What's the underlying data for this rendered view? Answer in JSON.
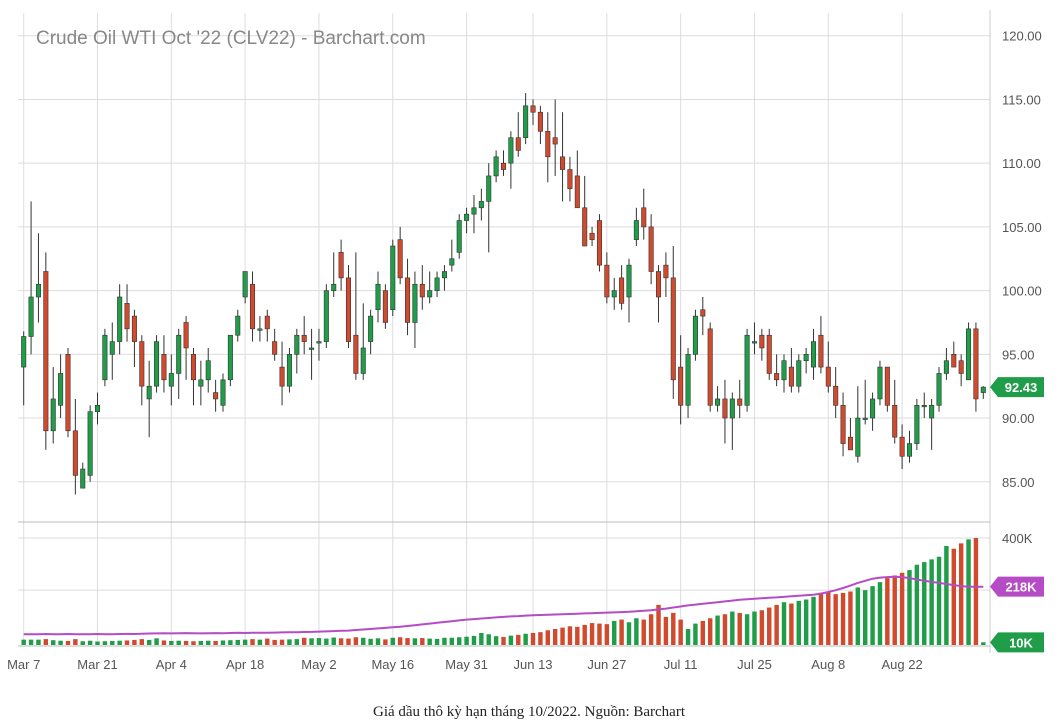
{
  "chart_data": {
    "type": "candlestick",
    "title": "Crude Oil WTI Oct '22 (CLV22) - Barchart.com",
    "price_axis": {
      "range": [
        82,
        121
      ],
      "ticks": [
        "120.00",
        "115.00",
        "110.00",
        "105.00",
        "100.00",
        "95.00",
        "90.00",
        "85.00"
      ],
      "tick_values": [
        120,
        115,
        110,
        105,
        100,
        95,
        90,
        85
      ]
    },
    "volume_axis": {
      "range": [
        0,
        400000
      ],
      "ticks": [
        "400K",
        "10K"
      ],
      "tick_values": [
        400000,
        10000
      ]
    },
    "x_axis": {
      "labels": [
        "Mar 7",
        "Mar 21",
        "Apr 4",
        "Apr 18",
        "May 2",
        "May 16",
        "May 31",
        "Jun 13",
        "Jun 27",
        "Jul 11",
        "Jul 25",
        "Aug 8",
        "Aug 22"
      ],
      "label_indices": [
        0,
        10,
        20,
        30,
        40,
        50,
        60,
        69,
        79,
        89,
        99,
        109,
        119
      ]
    },
    "grid": true,
    "last_price": {
      "label": "92.43",
      "value": 92.43,
      "color": "#1f9d48"
    },
    "avg_volume_badge": {
      "label": "218K",
      "value": 218000,
      "color": "#b54cc6"
    },
    "min_volume_badge": {
      "label": "10K",
      "value": 10000,
      "color": "#1f9d48"
    },
    "colors": {
      "up": "#1f9d48",
      "down": "#d24a2e",
      "volume_ma": "#b54cc6",
      "grid": "#dddddd"
    },
    "candles": [
      [
        94.0,
        96.8,
        91.0,
        96.4
      ],
      [
        96.4,
        107.0,
        95.0,
        99.5
      ],
      [
        99.5,
        104.5,
        97.5,
        100.5
      ],
      [
        101.5,
        103.0,
        87.5,
        89.0
      ],
      [
        89.0,
        94.0,
        88.0,
        91.5
      ],
      [
        91.0,
        95.0,
        90.0,
        93.5
      ],
      [
        95.0,
        95.5,
        88.5,
        89.0
      ],
      [
        89.0,
        91.5,
        84.0,
        85.5
      ],
      [
        84.5,
        86.5,
        84.5,
        86.0
      ],
      [
        85.5,
        91.0,
        85.0,
        90.5
      ],
      [
        90.5,
        92.0,
        89.5,
        91.0
      ],
      [
        93.0,
        97.0,
        92.5,
        96.5
      ],
      [
        95.0,
        97.5,
        93.0,
        96.0
      ],
      [
        96.0,
        100.5,
        95.0,
        99.5
      ],
      [
        99.0,
        100.5,
        96.0,
        97.0
      ],
      [
        98.0,
        98.5,
        94.0,
        96.0
      ],
      [
        96.0,
        96.5,
        91.0,
        92.5
      ],
      [
        91.5,
        94.5,
        88.5,
        92.5
      ],
      [
        92.5,
        96.5,
        92.0,
        96.0
      ],
      [
        95.0,
        96.5,
        92.0,
        93.0
      ],
      [
        92.5,
        95.0,
        91.0,
        93.5
      ],
      [
        93.5,
        97.0,
        91.5,
        96.5
      ],
      [
        97.5,
        98.0,
        93.0,
        95.5
      ],
      [
        95.0,
        95.5,
        91.0,
        93.0
      ],
      [
        92.5,
        94.5,
        91.0,
        93.0
      ],
      [
        93.0,
        95.5,
        92.0,
        94.5
      ],
      [
        92.0,
        93.0,
        90.5,
        91.5
      ],
      [
        91.0,
        93.5,
        90.5,
        93.0
      ],
      [
        93.0,
        96.5,
        92.5,
        96.5
      ],
      [
        96.5,
        98.5,
        96.0,
        98.0
      ],
      [
        99.5,
        101.5,
        99.0,
        101.5
      ],
      [
        100.5,
        101.5,
        96.0,
        97.0
      ],
      [
        97.0,
        98.0,
        96.0,
        97.0
      ],
      [
        98.0,
        98.5,
        96.0,
        97.0
      ],
      [
        96.0,
        97.0,
        94.5,
        95.0
      ],
      [
        94.0,
        96.0,
        91.0,
        92.5
      ],
      [
        92.5,
        95.5,
        92.0,
        95.0
      ],
      [
        95.0,
        97.0,
        93.5,
        96.5
      ],
      [
        96.5,
        98.0,
        95.0,
        96.0
      ],
      [
        95.5,
        97.0,
        93.0,
        95.5
      ],
      [
        96.0,
        97.0,
        94.5,
        96.0
      ],
      [
        96.0,
        100.5,
        95.5,
        100.0
      ],
      [
        100.0,
        103.0,
        99.5,
        100.5
      ],
      [
        103.0,
        104.0,
        100.0,
        101.0
      ],
      [
        101.0,
        102.0,
        95.5,
        96.0
      ],
      [
        96.5,
        103.0,
        93.0,
        93.5
      ],
      [
        93.5,
        99.0,
        93.0,
        95.5
      ],
      [
        96.0,
        98.5,
        95.0,
        98.0
      ],
      [
        98.5,
        101.5,
        97.5,
        100.5
      ],
      [
        100.0,
        100.5,
        97.0,
        97.5
      ],
      [
        98.5,
        104.0,
        98.0,
        103.5
      ],
      [
        104.0,
        105.0,
        100.5,
        101.0
      ],
      [
        101.0,
        102.5,
        96.5,
        97.5
      ],
      [
        97.5,
        101.5,
        95.5,
        100.5
      ],
      [
        100.5,
        102.0,
        98.5,
        99.5
      ],
      [
        99.5,
        101.5,
        99.0,
        100.0
      ],
      [
        100.0,
        101.5,
        99.5,
        101.0
      ],
      [
        101.0,
        102.0,
        100.0,
        101.5
      ],
      [
        102.0,
        104.0,
        101.5,
        102.5
      ],
      [
        103.0,
        106.0,
        102.5,
        105.5
      ],
      [
        105.5,
        106.5,
        104.5,
        106.0
      ],
      [
        106.0,
        107.5,
        104.5,
        106.5
      ],
      [
        106.5,
        108.0,
        105.5,
        107.0
      ],
      [
        107.0,
        110.0,
        103.0,
        109.0
      ],
      [
        109.0,
        111.0,
        108.5,
        110.5
      ],
      [
        110.0,
        111.0,
        109.0,
        109.5
      ],
      [
        110.0,
        112.5,
        108.0,
        112.0
      ],
      [
        112.0,
        114.0,
        110.5,
        111.0
      ],
      [
        112.0,
        115.5,
        111.5,
        114.5
      ],
      [
        114.5,
        115.0,
        113.0,
        114.0
      ],
      [
        114.0,
        114.5,
        111.5,
        112.5
      ],
      [
        112.5,
        114.0,
        108.5,
        110.5
      ],
      [
        112.0,
        115.0,
        109.0,
        111.5
      ],
      [
        110.5,
        114.0,
        107.0,
        109.5
      ],
      [
        109.5,
        110.5,
        107.0,
        108.0
      ],
      [
        109.0,
        111.0,
        106.5,
        106.5
      ],
      [
        106.5,
        109.0,
        103.5,
        103.5
      ],
      [
        104.5,
        105.0,
        103.5,
        104.0
      ],
      [
        105.5,
        106.0,
        101.5,
        102.0
      ],
      [
        102.0,
        103.0,
        99.0,
        99.5
      ],
      [
        99.5,
        101.0,
        98.5,
        100.0
      ],
      [
        101.0,
        102.0,
        98.5,
        99.0
      ],
      [
        99.5,
        102.5,
        97.5,
        102.0
      ],
      [
        104.0,
        106.5,
        103.5,
        105.5
      ],
      [
        106.5,
        108.0,
        104.0,
        105.0
      ],
      [
        105.0,
        106.0,
        100.5,
        101.5
      ],
      [
        101.5,
        102.0,
        97.5,
        99.5
      ],
      [
        102.0,
        103.0,
        99.5,
        101.0
      ],
      [
        101.0,
        103.5,
        91.5,
        93.0
      ],
      [
        94.0,
        96.5,
        89.5,
        91.0
      ],
      [
        91.0,
        95.5,
        90.0,
        95.0
      ],
      [
        95.0,
        98.5,
        94.5,
        98.0
      ],
      [
        98.5,
        99.5,
        96.5,
        98.0
      ],
      [
        97.0,
        97.5,
        90.5,
        91.0
      ],
      [
        91.0,
        92.5,
        90.5,
        91.5
      ],
      [
        91.5,
        93.0,
        88.0,
        90.0
      ],
      [
        90.0,
        92.0,
        87.5,
        91.5
      ],
      [
        91.5,
        93.0,
        90.0,
        91.0
      ],
      [
        91.0,
        97.0,
        90.5,
        96.5
      ],
      [
        96.0,
        97.5,
        95.0,
        96.0
      ],
      [
        96.5,
        97.0,
        94.5,
        95.5
      ],
      [
        96.5,
        97.0,
        93.0,
        93.5
      ],
      [
        93.5,
        95.0,
        92.5,
        93.0
      ],
      [
        93.0,
        95.0,
        92.0,
        94.5
      ],
      [
        94.0,
        95.5,
        92.0,
        92.5
      ],
      [
        92.5,
        95.0,
        92.0,
        94.5
      ],
      [
        94.5,
        95.5,
        93.5,
        95.0
      ],
      [
        94.0,
        97.0,
        93.0,
        96.0
      ],
      [
        96.5,
        98.0,
        93.5,
        94.0
      ],
      [
        94.0,
        96.0,
        92.0,
        92.5
      ],
      [
        92.5,
        94.0,
        90.0,
        91.0
      ],
      [
        91.0,
        92.0,
        87.0,
        88.0
      ],
      [
        88.5,
        90.0,
        87.5,
        87.5
      ],
      [
        87.0,
        92.5,
        86.5,
        90.0
      ],
      [
        90.0,
        93.0,
        89.5,
        90.0
      ],
      [
        90.0,
        92.0,
        89.0,
        91.5
      ],
      [
        91.5,
        94.5,
        91.0,
        94.0
      ],
      [
        94.0,
        94.0,
        90.5,
        91.0
      ],
      [
        91.0,
        93.0,
        88.0,
        88.5
      ],
      [
        88.5,
        89.5,
        86.0,
        87.0
      ],
      [
        87.0,
        89.0,
        86.5,
        88.0
      ],
      [
        88.0,
        91.5,
        87.5,
        91.0
      ],
      [
        91.0,
        92.0,
        90.0,
        91.0
      ],
      [
        90.0,
        91.5,
        87.5,
        91.0
      ],
      [
        91.0,
        94.0,
        90.5,
        93.5
      ],
      [
        93.5,
        95.5,
        93.0,
        94.5
      ],
      [
        95.0,
        96.0,
        94.0,
        94.0
      ],
      [
        94.5,
        95.0,
        92.5,
        93.5
      ],
      [
        93.0,
        97.5,
        93.0,
        97.0
      ],
      [
        97.0,
        97.5,
        90.5,
        91.5
      ],
      [
        92.0,
        92.5,
        91.5,
        92.43
      ]
    ],
    "volume": [
      20000,
      20000,
      20000,
      22000,
      18000,
      16000,
      15000,
      22000,
      14000,
      16000,
      13000,
      14000,
      15000,
      16000,
      17000,
      19000,
      22000,
      19000,
      25000,
      17000,
      15000,
      16000,
      15000,
      14000,
      15000,
      16000,
      15000,
      17000,
      18000,
      19000,
      20000,
      22000,
      20000,
      24000,
      19000,
      20000,
      21000,
      22000,
      27000,
      25000,
      26000,
      24000,
      28000,
      25000,
      24000,
      29000,
      27000,
      23000,
      25000,
      21000,
      27000,
      29000,
      26000,
      25000,
      26000,
      24000,
      23000,
      27000,
      27000,
      29000,
      31000,
      34000,
      45000,
      40000,
      33000,
      30000,
      35000,
      38000,
      42000,
      45000,
      48000,
      55000,
      60000,
      65000,
      70000,
      68000,
      75000,
      82000,
      80000,
      78000,
      90000,
      95000,
      85000,
      100000,
      95000,
      115000,
      150000,
      105000,
      120000,
      95000,
      60000,
      80000,
      90000,
      100000,
      110000,
      115000,
      125000,
      120000,
      115000,
      125000,
      130000,
      140000,
      150000,
      160000,
      155000,
      165000,
      170000,
      180000,
      195000,
      200000,
      190000,
      195000,
      200000,
      215000,
      205000,
      220000,
      235000,
      250000,
      260000,
      270000,
      280000,
      300000,
      310000,
      320000,
      330000,
      370000,
      360000,
      380000,
      395000,
      400000,
      10000
    ],
    "volume_ma": [
      40000,
      40500,
      40000,
      41000,
      40500,
      40000,
      41000,
      40500,
      40000,
      40500,
      41000,
      40000,
      40500,
      41000,
      41500,
      41000,
      42000,
      43000,
      43500,
      44000,
      43500,
      44000,
      44500,
      44000,
      43500,
      44000,
      44500,
      44000,
      45000,
      45500,
      45000,
      46000,
      45500,
      46000,
      46500,
      47000,
      47500,
      48000,
      48500,
      49000,
      50000,
      51000,
      52000,
      53000,
      54000,
      56000,
      58000,
      60000,
      62000,
      64000,
      66000,
      68000,
      71000,
      74000,
      77000,
      80000,
      83000,
      86000,
      89000,
      92000,
      95000,
      97000,
      99000,
      101000,
      103000,
      105000,
      107000,
      108000,
      110000,
      111000,
      112000,
      113000,
      114000,
      115000,
      116000,
      117000,
      118000,
      119000,
      120000,
      121000,
      122000,
      123000,
      124000,
      126000,
      128000,
      130000,
      133000,
      136000,
      140000,
      144000,
      148000,
      151000,
      154000,
      157000,
      160000,
      163000,
      166000,
      169000,
      171000,
      173000,
      175000,
      177000,
      178000,
      180000,
      182000,
      184000,
      186000,
      188000,
      192000,
      198000,
      205000,
      213000,
      222000,
      232000,
      240000,
      248000,
      252000,
      254000,
      255000,
      254000,
      250000,
      245000,
      240000,
      236000,
      232000,
      228000,
      224000,
      220000,
      218000,
      218000,
      218000
    ]
  },
  "caption": "Giá dầu thô kỳ hạn tháng 10/2022. Nguồn: Barchart"
}
